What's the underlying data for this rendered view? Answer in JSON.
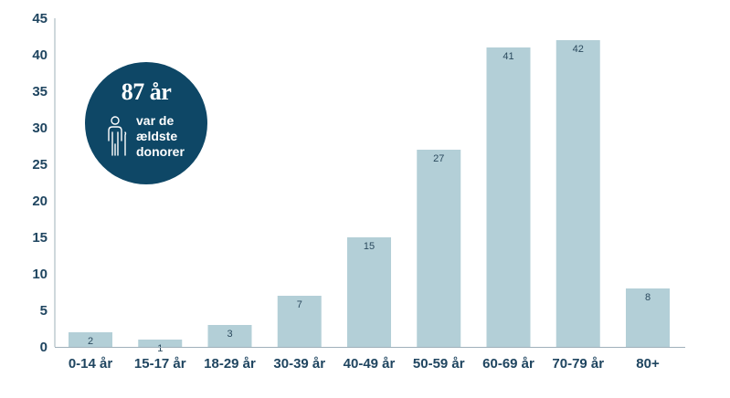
{
  "chart_data": {
    "type": "bar",
    "categories": [
      "0-14 år",
      "15-17 år",
      "18-29 år",
      "30-39 år",
      "40-49 år",
      "50-59 år",
      "60-69 år",
      "70-79 år",
      "80+"
    ],
    "values": [
      2,
      1,
      3,
      7,
      15,
      27,
      41,
      42,
      8
    ],
    "ylim": [
      0,
      45
    ],
    "yticks": [
      0,
      5,
      10,
      15,
      20,
      25,
      30,
      35,
      40,
      45
    ],
    "grid": false,
    "bar_color": "#b3cfd7",
    "axis_color": "#1f4560"
  },
  "callout": {
    "value": "87 år",
    "lines": [
      "var de",
      "ældste",
      "donorer"
    ],
    "icon": "elderly-person-icon",
    "background_color": "#0e4766"
  }
}
